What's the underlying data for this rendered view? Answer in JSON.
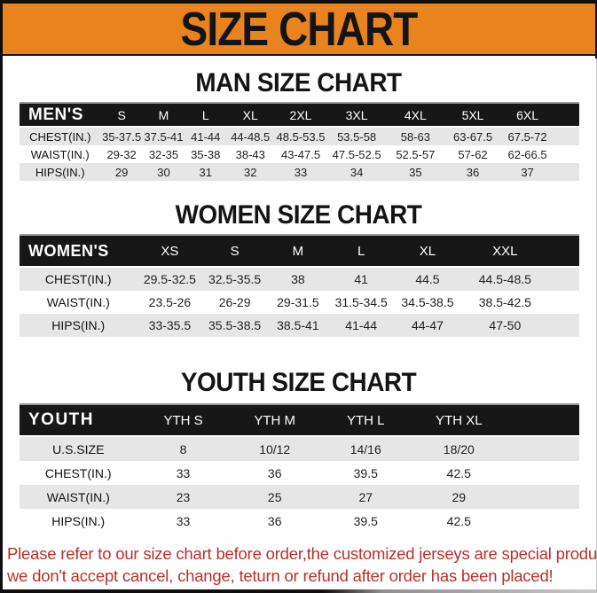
{
  "colors": {
    "banner_bg": "#E8831D",
    "header_bg": "#171717",
    "row_alt": "#E6E6E6",
    "note_red": "#B5322A",
    "frame_black": "#0E0E0E"
  },
  "banner": {
    "title": "SIZE CHART"
  },
  "sections": [
    {
      "id": "man",
      "title": "MAN SIZE CHART",
      "header_label": "MEN'S",
      "columns": [
        "S",
        "M",
        "L",
        "XL",
        "2XL",
        "3XL",
        "4XL",
        "5XL",
        "6XL"
      ],
      "rows": [
        {
          "label": "CHEST(IN.)",
          "values": [
            "35-37.5",
            "37.5-41",
            "41-44",
            "44-48.5",
            "48.5-53.5",
            "53.5-58",
            "58-63",
            "63-67.5",
            "67.5-72"
          ]
        },
        {
          "label": "WAIST(IN.)",
          "values": [
            "29-32",
            "32-35",
            "35-38",
            "38-43",
            "43-47.5",
            "47.5-52.5",
            "52.5-57",
            "57-62",
            "62-66.5"
          ]
        },
        {
          "label": "HIPS(IN.)",
          "values": [
            "29",
            "30",
            "31",
            "32",
            "33",
            "34",
            "35",
            "36",
            "37"
          ]
        }
      ]
    },
    {
      "id": "women",
      "title": "WOMEN SIZE CHART",
      "header_label": "WOMEN'S",
      "columns": [
        "XS",
        "S",
        "M",
        "L",
        "XL",
        "XXL"
      ],
      "rows": [
        {
          "label": "CHEST(IN.)",
          "values": [
            "29.5-32.5",
            "32.5-35.5",
            "38",
            "41",
            "44.5",
            "44.5-48.5"
          ]
        },
        {
          "label": "WAIST(IN.)",
          "values": [
            "23.5-26",
            "26-29",
            "29-31.5",
            "31.5-34.5",
            "34.5-38.5",
            "38.5-42.5"
          ]
        },
        {
          "label": "HIPS(IN.)",
          "values": [
            "33-35.5",
            "35.5-38.5",
            "38.5-41",
            "41-44",
            "44-47",
            "47-50"
          ]
        }
      ]
    },
    {
      "id": "youth",
      "title": "YOUTH SIZE CHART",
      "header_label": "YOUTH",
      "columns": [
        "YTH S",
        "YTH M",
        "YTH L",
        "YTH XL"
      ],
      "rows": [
        {
          "label": "U.S.SIZE",
          "values": [
            "8",
            "10/12",
            "14/16",
            "18/20"
          ]
        },
        {
          "label": "CHEST(IN.)",
          "values": [
            "33",
            "36",
            "39.5",
            "42.5"
          ]
        },
        {
          "label": "WAIST(IN.)",
          "values": [
            "23",
            "25",
            "27",
            "29"
          ]
        },
        {
          "label": "HIPS(IN.)",
          "values": [
            "33",
            "36",
            "39.5",
            "42.5"
          ]
        }
      ]
    }
  ],
  "footer": {
    "line1": "Please refer to our size chart before order,the customized jerseys are special products,",
    "line2": "we don't accept cancel, change, teturn or refund after order has been placed!"
  }
}
